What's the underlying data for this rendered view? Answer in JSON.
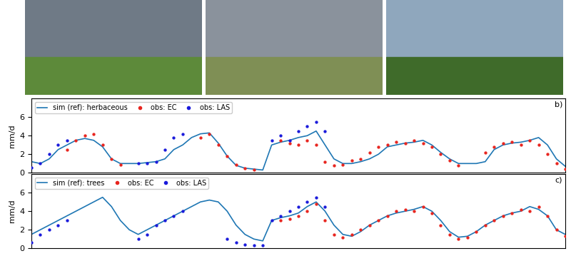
{
  "chart_data": [
    {
      "type": "line",
      "annotation": "b)",
      "ylabel": "mm/d",
      "xlim": [
        0,
        60
      ],
      "ylim": [
        0,
        8
      ],
      "yticks": [
        0,
        2,
        4,
        6
      ],
      "tick_labels": "y",
      "grid": false,
      "legend": "upper left",
      "series": [
        {
          "name": "sim (ref): herbaceous",
          "type": "line",
          "color": "#1f77b4",
          "line_style": "solid",
          "x": [
            0,
            1,
            2,
            3,
            4,
            5,
            6,
            7,
            8,
            9,
            10,
            11,
            12,
            13,
            14,
            15,
            16,
            17,
            18,
            19,
            20,
            21,
            22,
            23,
            24,
            25,
            26,
            27,
            28,
            29,
            30,
            31,
            32,
            33,
            34,
            35,
            36,
            37,
            38,
            39,
            40,
            41,
            42,
            43,
            44,
            45,
            46,
            47,
            48,
            49,
            50,
            51,
            52,
            53,
            54,
            55,
            56,
            57,
            58,
            59,
            60
          ],
          "values": [
            1.2,
            1.0,
            1.5,
            2.5,
            3.0,
            3.5,
            3.7,
            3.5,
            2.8,
            1.5,
            1.0,
            1.0,
            1.0,
            1.1,
            1.2,
            1.5,
            2.5,
            3.0,
            3.8,
            4.2,
            4.3,
            3.2,
            1.8,
            0.8,
            0.5,
            0.4,
            0.3,
            3.0,
            3.3,
            3.5,
            3.8,
            4.0,
            4.5,
            3.0,
            1.5,
            1.0,
            1.0,
            1.2,
            1.5,
            2.0,
            2.8,
            3.0,
            3.2,
            3.3,
            3.5,
            3.0,
            2.2,
            1.5,
            1.0,
            1.0,
            1.0,
            1.2,
            2.5,
            3.0,
            3.2,
            3.3,
            3.5,
            3.8,
            3.0,
            1.5,
            0.7
          ]
        },
        {
          "name": "obs: EC",
          "type": "scatter",
          "color": "#e8251f",
          "marker": "dot",
          "x": [
            4,
            5,
            6,
            7,
            8,
            9,
            10,
            19,
            20,
            21,
            22,
            23,
            24,
            25,
            28,
            29,
            30,
            31,
            32,
            33,
            34,
            35,
            36,
            37,
            38,
            39,
            40,
            41,
            42,
            43,
            44,
            45,
            46,
            47,
            48,
            51,
            52,
            53,
            54,
            55,
            56,
            57,
            58,
            59,
            60
          ],
          "values": [
            2.5,
            3.5,
            4.0,
            4.2,
            3.0,
            1.5,
            0.9,
            3.8,
            4.2,
            3.0,
            1.8,
            0.9,
            0.5,
            0.3,
            3.5,
            3.2,
            3.0,
            3.5,
            3.0,
            1.2,
            0.8,
            0.9,
            1.3,
            1.5,
            2.2,
            2.8,
            3.0,
            3.3,
            3.2,
            3.5,
            3.2,
            2.8,
            2.0,
            1.3,
            0.8,
            2.2,
            2.8,
            3.2,
            3.3,
            3.0,
            3.5,
            3.0,
            2.0,
            1.0,
            0.4
          ]
        },
        {
          "name": "obs: LAS",
          "type": "scatter",
          "color": "#1a1adb",
          "marker": "dot",
          "x": [
            0,
            1,
            2,
            3,
            4,
            12,
            13,
            14,
            15,
            16,
            17,
            27,
            28,
            29,
            30,
            31,
            32,
            33
          ],
          "values": [
            0.6,
            1.0,
            2.0,
            3.0,
            3.5,
            1.0,
            1.0,
            1.2,
            2.5,
            3.8,
            4.2,
            3.5,
            4.0,
            3.5,
            4.5,
            5.0,
            5.5,
            4.5
          ]
        }
      ]
    },
    {
      "type": "line",
      "annotation": "c)",
      "ylabel": "mm/d",
      "xlim": [
        0,
        60
      ],
      "ylim": [
        0,
        8
      ],
      "yticks": [
        0,
        2,
        4,
        6
      ],
      "tick_labels": "y",
      "grid": false,
      "legend": "upper left",
      "series": [
        {
          "name": "sim (ref): trees",
          "type": "line",
          "color": "#1f77b4",
          "line_style": "solid",
          "x": [
            0,
            1,
            2,
            3,
            4,
            5,
            6,
            7,
            8,
            9,
            10,
            11,
            12,
            13,
            14,
            15,
            16,
            17,
            18,
            19,
            20,
            21,
            22,
            23,
            24,
            25,
            26,
            27,
            28,
            29,
            30,
            31,
            32,
            33,
            34,
            35,
            36,
            37,
            38,
            39,
            40,
            41,
            42,
            43,
            44,
            45,
            46,
            47,
            48,
            49,
            50,
            51,
            52,
            53,
            54,
            55,
            56,
            57,
            58,
            59,
            60
          ],
          "values": [
            1.5,
            2.0,
            2.5,
            3.0,
            3.5,
            4.0,
            4.5,
            5.0,
            5.5,
            4.5,
            3.0,
            2.0,
            1.5,
            2.0,
            2.5,
            3.0,
            3.5,
            4.0,
            4.5,
            5.0,
            5.2,
            5.0,
            4.0,
            2.5,
            1.5,
            1.0,
            0.8,
            3.0,
            3.3,
            3.5,
            3.8,
            4.5,
            5.0,
            4.0,
            2.5,
            1.5,
            1.3,
            1.8,
            2.5,
            3.0,
            3.5,
            3.8,
            4.0,
            4.2,
            4.5,
            4.0,
            3.0,
            1.8,
            1.2,
            1.3,
            1.8,
            2.5,
            3.0,
            3.5,
            3.8,
            4.0,
            4.5,
            4.2,
            3.5,
            2.0,
            1.5
          ]
        },
        {
          "name": "obs: EC",
          "type": "scatter",
          "color": "#e8251f",
          "marker": "dot",
          "x": [
            28,
            29,
            30,
            31,
            32,
            33,
            34,
            35,
            36,
            37,
            38,
            39,
            40,
            41,
            42,
            43,
            44,
            45,
            46,
            47,
            48,
            49,
            50,
            51,
            52,
            53,
            54,
            55,
            56,
            57,
            58,
            59,
            60
          ],
          "values": [
            3.0,
            3.2,
            3.5,
            4.0,
            4.8,
            3.0,
            1.5,
            1.2,
            1.5,
            2.0,
            2.5,
            3.0,
            3.5,
            4.0,
            4.2,
            4.0,
            4.5,
            3.8,
            2.5,
            1.5,
            1.0,
            1.2,
            1.8,
            2.5,
            3.0,
            3.5,
            3.8,
            4.2,
            4.0,
            4.5,
            3.5,
            2.0,
            1.3
          ]
        },
        {
          "name": "obs: LAS",
          "type": "scatter",
          "color": "#1a1adb",
          "marker": "dot",
          "x": [
            0,
            1,
            2,
            3,
            4,
            12,
            13,
            14,
            15,
            16,
            17,
            22,
            23,
            24,
            25,
            26,
            27,
            28,
            29,
            30,
            31,
            32,
            33
          ],
          "values": [
            0.6,
            1.5,
            2.0,
            2.5,
            3.0,
            1.0,
            1.5,
            2.5,
            3.0,
            3.5,
            4.0,
            1.0,
            0.6,
            0.4,
            0.3,
            0.3,
            3.0,
            3.5,
            4.0,
            4.5,
            5.0,
            5.5,
            4.5
          ]
        }
      ]
    }
  ]
}
